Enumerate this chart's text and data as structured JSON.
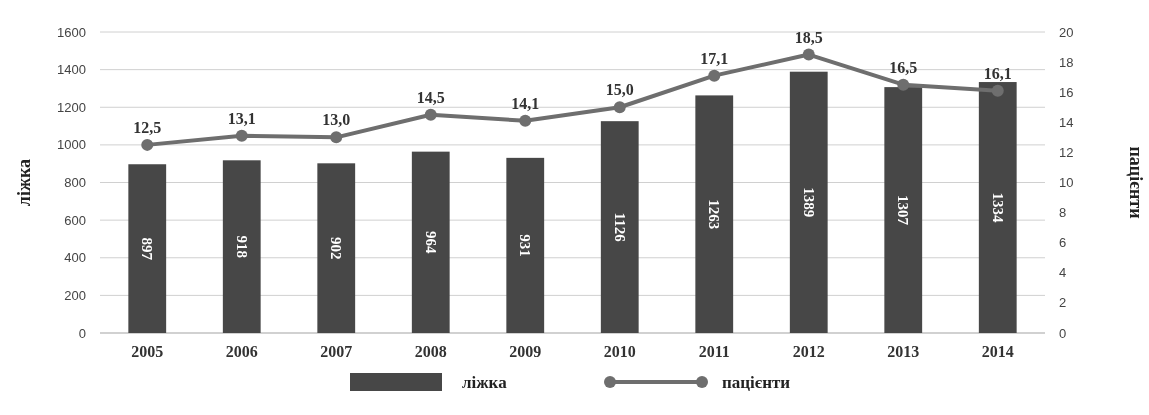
{
  "chart_data": {
    "type": "bar",
    "categories": [
      "2005",
      "2006",
      "2007",
      "2008",
      "2009",
      "2010",
      "2011",
      "2012",
      "2013",
      "2014"
    ],
    "ylabel": "ліжка",
    "y2label": "пацієнти",
    "ylim": [
      0,
      1600
    ],
    "yticks": [
      0,
      200,
      400,
      600,
      800,
      1000,
      1200,
      1400,
      1600
    ],
    "y2lim": [
      0,
      20
    ],
    "y2ticks": [
      0,
      2,
      4,
      6,
      8,
      10,
      12,
      14,
      16,
      18,
      20
    ],
    "grid": "y",
    "legend": "bottom",
    "series": [
      {
        "name": "ліжка",
        "color": "#474747",
        "values": [
          897,
          918,
          902,
          964,
          931,
          1126,
          1263,
          1389,
          1307,
          1334
        ],
        "value_labels": [
          "897",
          "918",
          "902",
          "964",
          "931",
          "1126",
          "1263",
          "1389",
          "1307",
          "1334"
        ]
      },
      {
        "name": "пацієнти",
        "type": "line",
        "axis": "y2",
        "color": "#6e6e6e",
        "marker": "circle",
        "values": [
          12.5,
          13.1,
          13.0,
          14.5,
          14.1,
          15.0,
          17.1,
          18.5,
          16.5,
          16.1
        ],
        "value_labels": [
          "12,5",
          "13,1",
          "13,0",
          "14,5",
          "14,1",
          "15,0",
          "17,1",
          "18,5",
          "16,5",
          "16,1"
        ]
      }
    ]
  }
}
